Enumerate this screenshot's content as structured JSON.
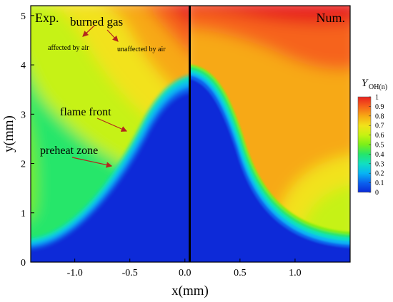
{
  "chart_data": {
    "type": "heatmap",
    "xlabel": "x(mm)",
    "ylabel": "y(mm)",
    "xlim": [
      -1.4,
      1.5
    ],
    "ylim": [
      0,
      5.2
    ],
    "xticks": [
      {
        "value": -1.0,
        "label": "-1.0"
      },
      {
        "value": -0.5,
        "label": "-0.5"
      },
      {
        "value": 0.0,
        "label": "0.0"
      },
      {
        "value": 0.5,
        "label": "0.5"
      },
      {
        "value": 1.0,
        "label": "1.0"
      }
    ],
    "yticks": [
      {
        "value": 0,
        "label": "0"
      },
      {
        "value": 1,
        "label": "1"
      },
      {
        "value": 2,
        "label": "2"
      },
      {
        "value": 3,
        "label": "3"
      },
      {
        "value": 4,
        "label": "4"
      },
      {
        "value": 5,
        "label": "5"
      }
    ],
    "panels": [
      {
        "name": "Exp.",
        "x_range": [
          -1.4,
          0.0
        ],
        "flame_tip_y": 3.65
      },
      {
        "name": "Num.",
        "x_range": [
          0.0,
          1.5
        ],
        "flame_tip_y": 3.85
      }
    ],
    "colorbar": {
      "title": "Y",
      "subscript": "OH(n)",
      "range": [
        0,
        1
      ],
      "ticks": [
        "0",
        "0.1",
        "0.2",
        "0.3",
        "0.4",
        "0.5",
        "0.6",
        "0.7",
        "0.8",
        "0.9",
        "1"
      ],
      "colors": [
        "#0a2ad8",
        "#0a62ee",
        "#08b4f4",
        "#11dfc2",
        "#25e66a",
        "#7bef18",
        "#c6f212",
        "#f2e21a",
        "#f7a914",
        "#f6631a",
        "#e8201e"
      ]
    },
    "annotations": [
      {
        "text": "burned gas",
        "x": -0.75,
        "y": 4.85
      },
      {
        "text": "affected by air",
        "x": -1.22,
        "y": 4.25
      },
      {
        "text": "unaffected by air",
        "x": -0.62,
        "y": 4.25
      },
      {
        "text": "flame front",
        "x": -1.13,
        "y": 2.95
      },
      {
        "text": "preheat zone",
        "x": -1.3,
        "y": 2.2
      }
    ]
  }
}
